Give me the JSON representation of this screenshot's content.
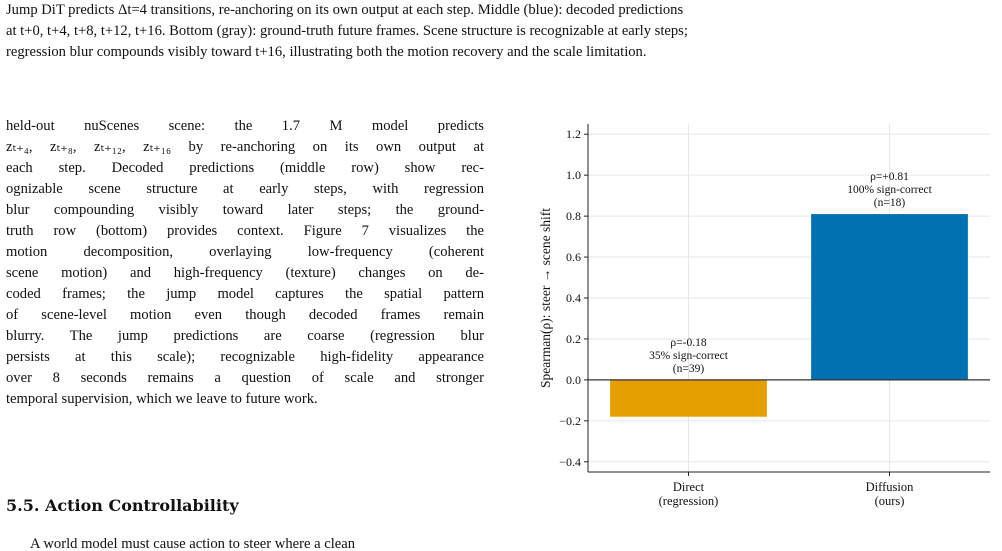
{
  "caption": {
    "line1": "Jump DiT predicts Δt=4 transitions, re-anchoring on its own output at each step. Middle (blue): decoded predictions",
    "line2": "at t+0, t+4, t+8, t+12, t+16. Bottom (gray): ground-truth future frames. Scene structure is recognizable at early steps;",
    "line3": "regression blur compounds visibly toward t+16, illustrating both the motion recovery and the scale limitation."
  },
  "body_paragraph": "held-out nuScenes scene: the 1.7 M model predicts z_{t+4}, z_{t+8}, z_{t+12}, z_{t+16} by re-anchoring on its own output at each step. Decoded predictions (middle row) show recognizable scene structure at early steps, with regression blur compounding visibly toward later steps; the ground-truth row (bottom) provides context. Figure 7 visualizes the motion decomposition, overlaying low-frequency (coherent scene motion) and high-frequency (texture) changes on decoded frames; the jump model captures the spatial pattern of scene-level motion even though decoded frames remain blurry. The jump predictions are coarse (regression blur persists at this scale); recognizable high-fidelity appearance over 8 seconds remains a question of scale and stronger temporal supervision, which we leave to future work.",
  "body_lines": [
    "held-out nuScenes scene:  the 1.7 M model predicts",
    "zₜ₊₄, zₜ₊₈, zₜ₊₁₂, zₜ₊₁₆ by re-anchoring on its own output at",
    "each step.  Decoded predictions (middle row) show rec-",
    "ognizable scene structure at early steps, with regression",
    "blur compounding visibly toward later steps; the ground-",
    "truth row (bottom) provides context. Figure 7 visualizes the",
    "motion decomposition, overlaying low-frequency (coherent",
    "scene motion) and high-frequency (texture) changes on de-",
    "coded frames; the jump model captures the spatial pattern",
    "of scene-level motion even though decoded frames remain",
    "blurry.  The jump predictions are coarse (regression blur",
    "persists at this scale); recognizable high-fidelity appearance",
    "over 8 seconds remains a question of scale and stronger",
    "temporal supervision, which we leave to future work."
  ],
  "section": {
    "number": "5.5.",
    "title": "Action Controllability"
  },
  "next_line_text": "A world model must cause action to steer where a clean",
  "colors": {
    "direct_bar": "#E69F00",
    "diffusion_bar": "#0072B2",
    "grid": "#e6e6e6",
    "axis": "#222222"
  },
  "chart_data": {
    "type": "bar",
    "categories": [
      [
        "Direct",
        "(regression)"
      ],
      [
        "Diffusion",
        "(ours)"
      ]
    ],
    "values": [
      -0.18,
      0.81
    ],
    "bar_annotations": [
      [
        "ρ=-0.18",
        "35% sign-correct",
        "(n=39)"
      ],
      [
        "ρ=+0.81",
        "100% sign-correct",
        "(n=18)"
      ]
    ],
    "ylabel": "Spearman(ρ): steer → scene shift",
    "xlabel": "",
    "ylim": [
      -0.45,
      1.25
    ],
    "yticks": [
      -0.4,
      -0.2,
      0.0,
      0.2,
      0.4,
      0.6,
      0.8,
      1.0,
      1.2
    ],
    "ytick_labels": [
      "−0.4",
      "−0.2",
      "0.0",
      "0.2",
      "0.4",
      "0.6",
      "0.8",
      "1.0",
      "1.2"
    ],
    "zero_line": true,
    "grid": true
  }
}
